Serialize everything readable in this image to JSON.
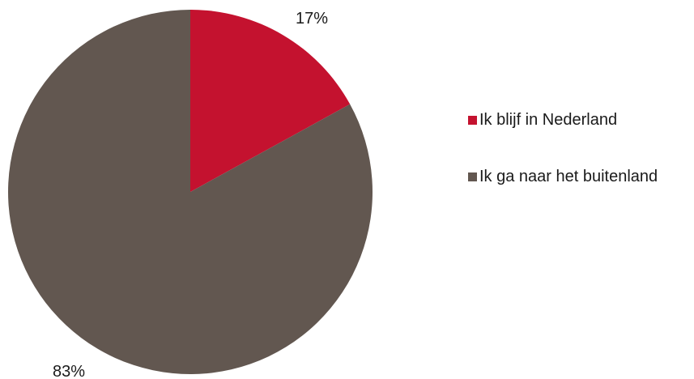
{
  "chart_data": {
    "type": "pie",
    "slices": [
      {
        "label": "Ik blijf in Nederland",
        "value": 17,
        "value_label": "17%",
        "color": "#c4122f"
      },
      {
        "label": "Ik ga naar het buitenland",
        "value": 83,
        "value_label": "83%",
        "color": "#625750"
      }
    ],
    "legend_position": "right",
    "start_angle": "top, clockwise"
  }
}
